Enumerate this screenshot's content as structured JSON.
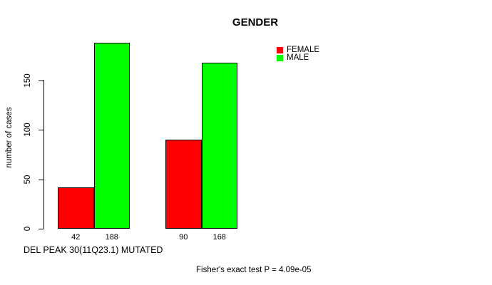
{
  "title": "GENDER",
  "ylabel": "number of cases",
  "xlabel": "DEL PEAK 30(11Q23.1) MUTATED",
  "footer": "Fisher's exact test P = 4.09e-05",
  "colors": {
    "female": "#ff0000",
    "male": "#00ff00",
    "axis": "#000000",
    "background": "#ffffff"
  },
  "legend": [
    {
      "label": "FEMALE",
      "color": "#ff0000"
    },
    {
      "label": "MALE",
      "color": "#00ff00"
    }
  ],
  "chart_data": {
    "type": "bar",
    "title": "GENDER",
    "xlabel": "DEL PEAK 30(11Q23.1) MUTATED",
    "ylabel": "number of cases",
    "categories": [
      "",
      ""
    ],
    "series": [
      {
        "name": "FEMALE",
        "color": "#ff0000",
        "values": [
          42,
          90
        ]
      },
      {
        "name": "MALE",
        "color": "#00ff00",
        "values": [
          188,
          168
        ]
      }
    ],
    "bar_value_labels": [
      [
        42,
        188
      ],
      [
        90,
        168
      ]
    ],
    "yticks": [
      0,
      50,
      100,
      150
    ],
    "ylim": [
      0,
      150
    ],
    "grid": false,
    "legend_position": "top-right",
    "annotation": "Fisher's exact test P = 4.09e-05"
  }
}
